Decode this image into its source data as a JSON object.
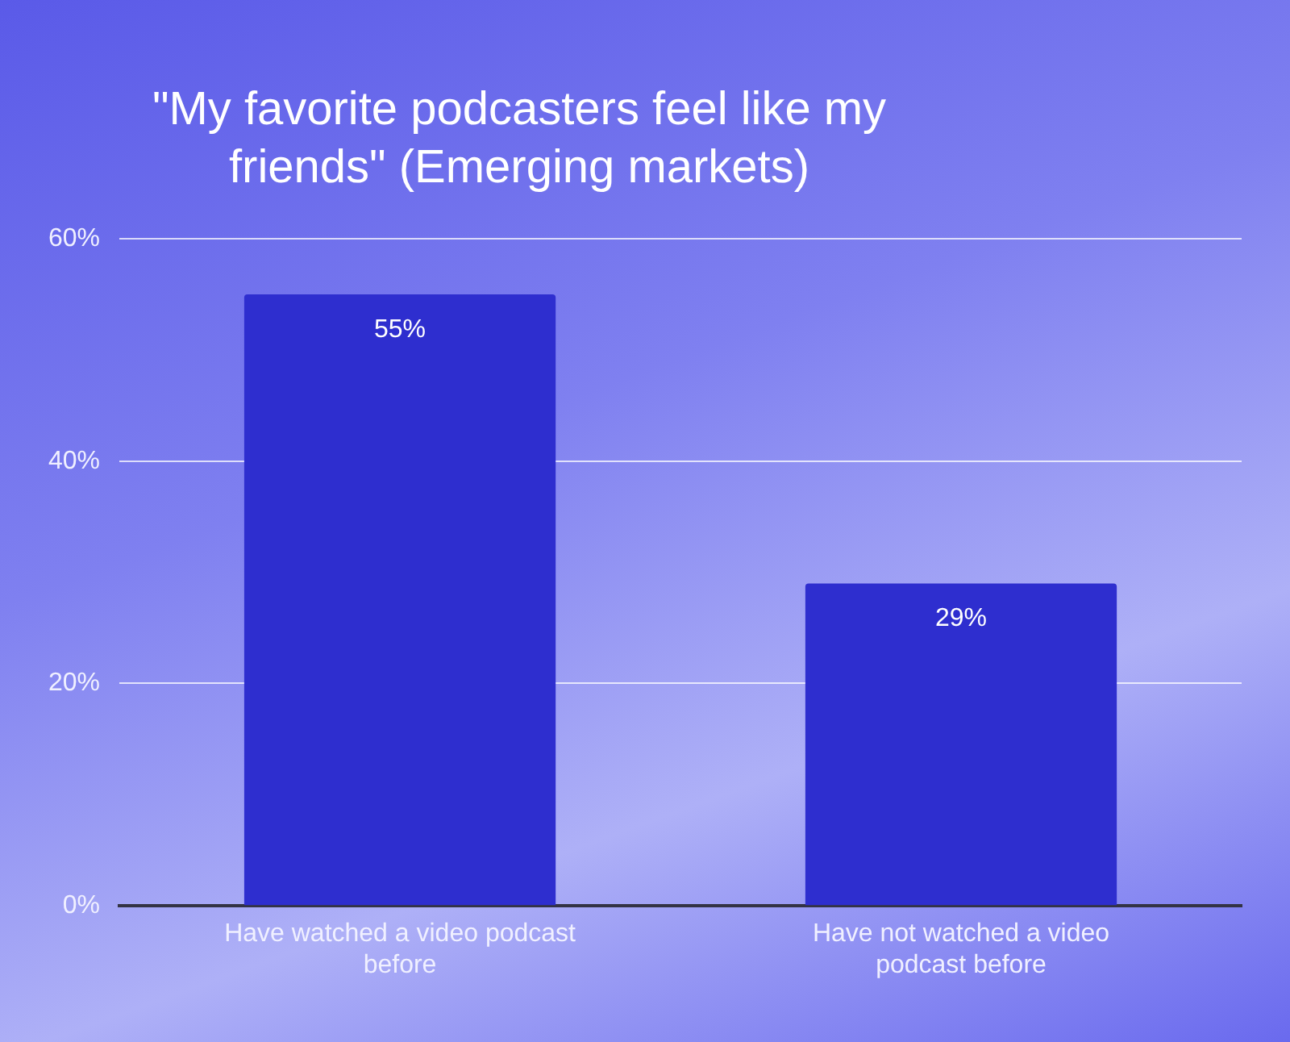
{
  "chart_data": {
    "type": "bar",
    "title": "\"My favorite podcasters feel like my friends\" (Emerging markets)",
    "categories": [
      "Have watched a video podcast before",
      "Have not watched a video podcast before"
    ],
    "values": [
      55,
      29
    ],
    "color": "#2e2ecf",
    "value_labels": [
      "55%",
      "29%"
    ],
    "ylim": [
      0,
      60
    ],
    "yticks": [
      {
        "value": 0,
        "label": "0%"
      },
      {
        "value": 20,
        "label": "20%"
      },
      {
        "value": 40,
        "label": "40%"
      },
      {
        "value": 60,
        "label": "60%"
      }
    ],
    "grid": "y",
    "legend": false
  }
}
